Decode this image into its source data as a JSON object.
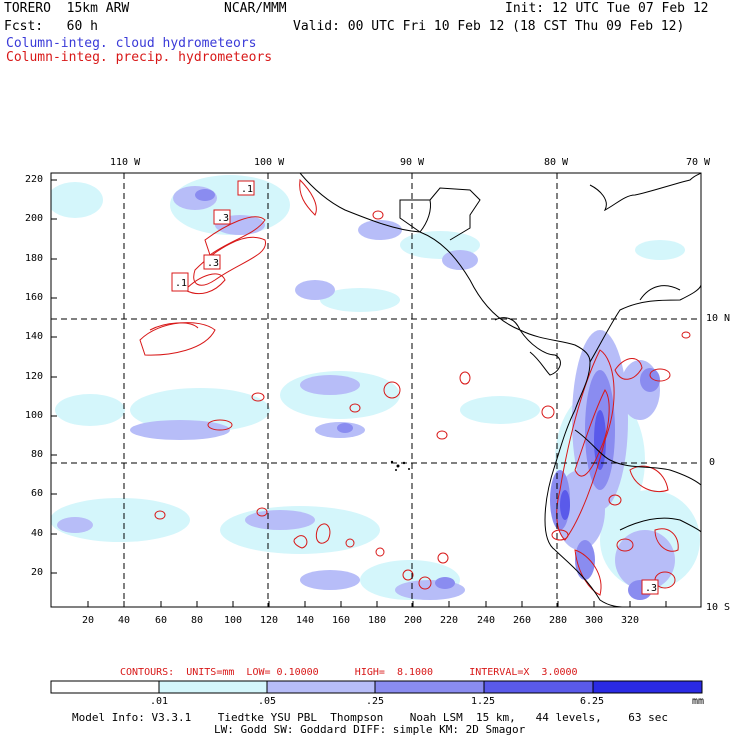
{
  "header": {
    "model": "TORERO  15km ARW",
    "org": "NCAR/MMM",
    "init": "Init: 12 UTC Tue 07 Feb 12",
    "fcst": "Fcst:   60 h",
    "valid": "Valid: 00 UTC Fri 10 Feb 12 (18 CST Thu 09 Feb 12)",
    "field_cloud": "Column-integ. cloud hydrometeors",
    "field_precip": "Column-integ. precip. hydrometeors",
    "cloud_color": "#3a3ad8",
    "precip_color": "#d81818"
  },
  "map": {
    "lon_labels": [
      "110 W",
      "100 W",
      "90 W",
      "80 W",
      "70 W"
    ],
    "lat_labels": [
      "10 N",
      "0",
      "10 S"
    ],
    "grid_x_ticks": [
      "20",
      "40",
      "60",
      "80",
      "100",
      "120",
      "140",
      "160",
      "180",
      "200",
      "220",
      "240",
      "260",
      "280",
      "300",
      "320"
    ],
    "grid_y_ticks": [
      "220",
      "200",
      "180",
      "160",
      "140",
      "120",
      "100",
      "80",
      "60",
      "40",
      "20"
    ],
    "contour_labels": [
      ".1",
      ".3",
      ".3",
      ".1",
      ".3"
    ]
  },
  "contour_info": {
    "text": "CONTOURS:  UNITS=mm  LOW= 0.10000      HIGH=  8.1000      INTERVAL=X  3.0000"
  },
  "colorbar": {
    "labels": [
      ".01",
      ".05",
      ".25",
      "1.25",
      "6.25"
    ],
    "unit": "mm",
    "colors": [
      "#ffffff",
      "#d4f6fb",
      "#b7bdf8",
      "#8a8cf0",
      "#5a5aea",
      "#2a2ae4"
    ]
  },
  "model_info": {
    "line1": "Model Info: V3.3.1    Tiedtke YSU PBL  Thompson    Noah LSM  15 km,   44 levels,    63 sec",
    "line2": "LW: Godd SW: Goddard DIFF: simple KM: 2D Smagor"
  }
}
